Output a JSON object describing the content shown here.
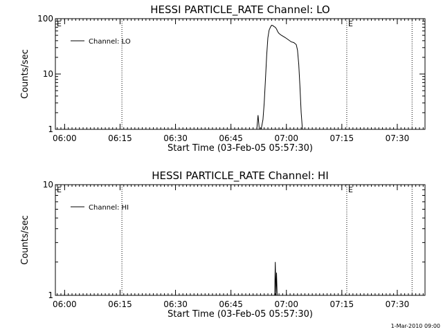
{
  "footer": "1-Mar-2010 09:00",
  "chart_data": [
    {
      "type": "line",
      "title": "HESSI PARTICLE_RATE Channel: LO",
      "xlabel": "Start Time (03-Feb-05 05:57:30)",
      "ylabel": "Counts/sec",
      "legend": "Channel: LO",
      "legend_position": "top-left",
      "y_scale": "log",
      "ylim": [
        1,
        100
      ],
      "xlim": [
        "05:57:30",
        "07:37:30"
      ],
      "x_ticks": [
        "06:00",
        "06:15",
        "06:30",
        "06:45",
        "07:00",
        "07:15",
        "07:30"
      ],
      "y_ticks": [
        "1",
        "10",
        "100"
      ],
      "markers": [
        {
          "time": "06:15:30",
          "label": ""
        },
        {
          "time": "07:16:20",
          "label": "E"
        },
        {
          "time": "07:34:00",
          "label": ""
        }
      ],
      "start_flag": "E",
      "series": [
        {
          "name": "Channel: LO",
          "points": [
            [
              "06:52:00",
              1
            ],
            [
              "06:52:20",
              1.8
            ],
            [
              "06:52:40",
              1
            ],
            [
              "06:53:10",
              1.0
            ],
            [
              "06:53:40",
              1.5
            ],
            [
              "06:54:00",
              3
            ],
            [
              "06:54:20",
              8
            ],
            [
              "06:54:40",
              22
            ],
            [
              "06:55:00",
              45
            ],
            [
              "06:55:20",
              62
            ],
            [
              "06:55:40",
              70
            ],
            [
              "06:56:00",
              76
            ],
            [
              "06:56:20",
              75
            ],
            [
              "06:56:40",
              72
            ],
            [
              "06:57:00",
              70
            ],
            [
              "06:57:20",
              65
            ],
            [
              "06:57:40",
              58
            ],
            [
              "06:58:00",
              54
            ],
            [
              "06:58:40",
              50
            ],
            [
              "06:59:20",
              47
            ],
            [
              "07:00:00",
              44
            ],
            [
              "07:00:40",
              41
            ],
            [
              "07:01:20",
              38
            ],
            [
              "07:02:00",
              37
            ],
            [
              "07:02:40",
              34
            ],
            [
              "07:03:00",
              27
            ],
            [
              "07:03:20",
              15
            ],
            [
              "07:03:40",
              6
            ],
            [
              "07:04:00",
              2
            ],
            [
              "07:04:20",
              1
            ]
          ]
        }
      ]
    },
    {
      "type": "line",
      "title": "HESSI PARTICLE_RATE Channel: HI",
      "xlabel": "Start Time (03-Feb-05 05:57:30)",
      "ylabel": "Counts/sec",
      "legend": "Channel: HI",
      "legend_position": "top-left",
      "y_scale": "log",
      "ylim": [
        1,
        10
      ],
      "xlim": [
        "05:57:30",
        "07:37:30"
      ],
      "x_ticks": [
        "06:00",
        "06:15",
        "06:30",
        "06:45",
        "07:00",
        "07:15",
        "07:30"
      ],
      "y_ticks": [
        "1",
        "10"
      ],
      "markers": [
        {
          "time": "06:15:30",
          "label": ""
        },
        {
          "time": "07:16:20",
          "label": "E"
        },
        {
          "time": "07:34:00",
          "label": ""
        }
      ],
      "start_flag": "E",
      "series": [
        {
          "name": "Channel: HI",
          "points": [
            [
              "06:56:50",
              1
            ],
            [
              "06:57:00",
              2.0
            ],
            [
              "06:57:10",
              1.0
            ],
            [
              "06:57:20",
              1.6
            ],
            [
              "06:57:30",
              1
            ]
          ]
        }
      ]
    }
  ]
}
